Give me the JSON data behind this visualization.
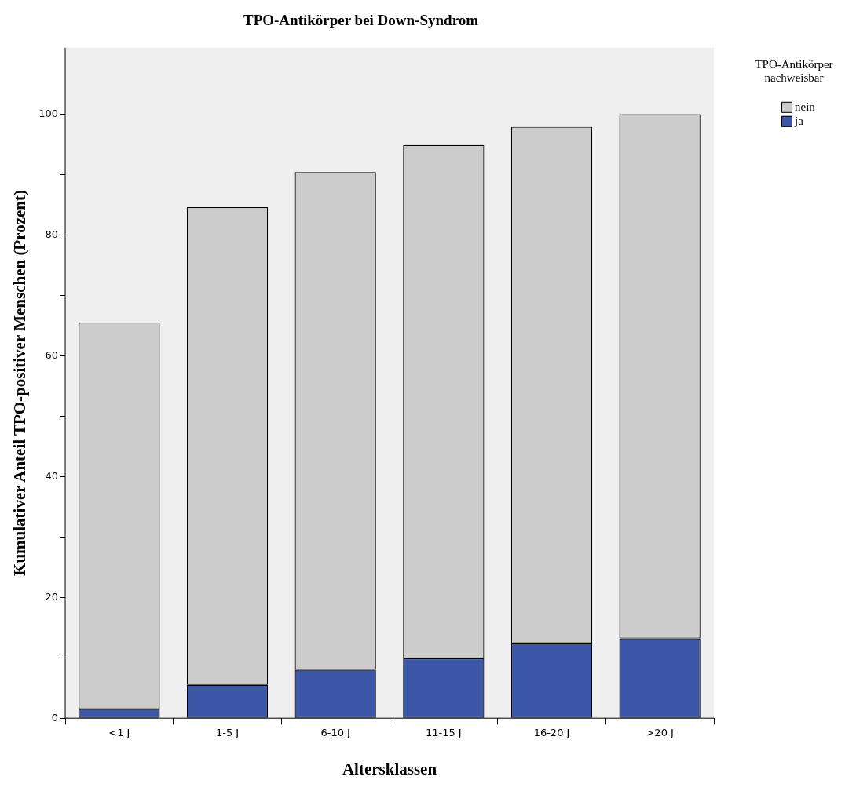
{
  "chart_data": {
    "type": "bar",
    "title": "TPO-Antikörper bei Down-Syndrom",
    "xlabel": "Altersklassen",
    "ylabel": "Kumulativer Anteil TPO-positiver Menschen (Prozent)",
    "legend_title": "TPO-Antikörper nachweisbar",
    "categories": [
      "<1 J",
      "1-5 J",
      "6-10 J",
      "11-15 J",
      "16-20 J",
      ">20 J"
    ],
    "stacked": true,
    "series": [
      {
        "name": "ja",
        "color": "#3c56a8",
        "values": [
          1.5,
          5.5,
          8.0,
          9.9,
          12.4,
          13.2
        ]
      },
      {
        "name": "nein",
        "color": "#cccccc",
        "values": [
          64.0,
          79.1,
          82.4,
          85.0,
          85.5,
          86.8
        ]
      }
    ],
    "ylim": [
      0,
      111
    ],
    "yticks": [
      0,
      {
        "value": 10,
        "label": null
      },
      20,
      {
        "value": 30,
        "label": null
      },
      40,
      {
        "value": 50,
        "label": null
      },
      60,
      {
        "value": 70,
        "label": null
      },
      80,
      {
        "value": 90,
        "label": null
      },
      100
    ],
    "grid": false,
    "legend": "top right"
  }
}
